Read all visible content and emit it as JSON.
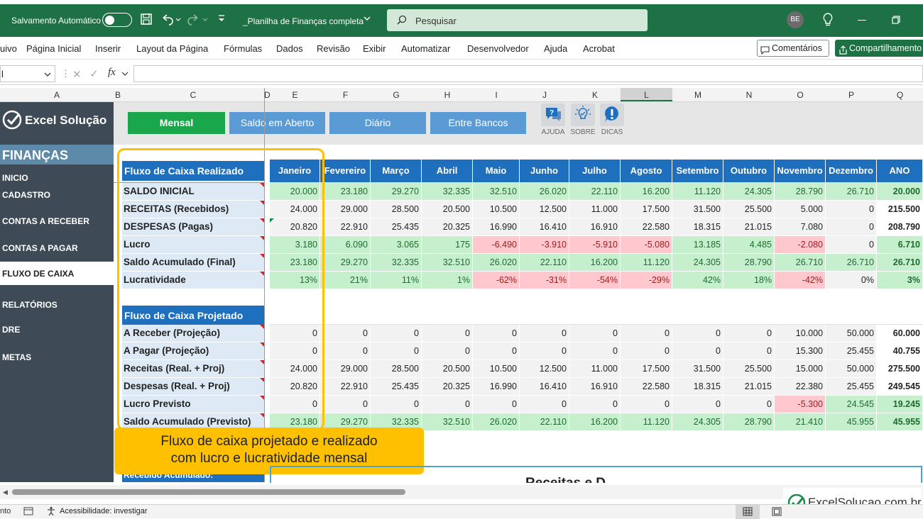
{
  "titlebar": {
    "autosave_label": "Salvamento Automático",
    "file_name": "_Planilha de Finanças completa",
    "search_placeholder": "Pesquisar",
    "avatar_initials": "BE"
  },
  "menu": [
    "uivo",
    "Página Inicial",
    "Inserir",
    "Layout da Página",
    "Fórmulas",
    "Dados",
    "Revisão",
    "Exibir",
    "Automatizar",
    "Desenvolvedor",
    "Ajuda",
    "Acrobat"
  ],
  "comments_label": "Comentários",
  "share_label": "Compartilhamento",
  "formula_bar": {
    "name_box": "l",
    "fx": "fx"
  },
  "column_headers": [
    "A",
    "B",
    "C",
    "D",
    "E",
    "F",
    "G",
    "H",
    "I",
    "J",
    "K",
    "L",
    "M",
    "N",
    "O",
    "P",
    "Q"
  ],
  "sidebar": {
    "brand": "Excel Solução",
    "section": "FINANÇAS",
    "items": [
      "INICIO",
      "CADASTRO",
      "CONTAS A RECEBER",
      "CONTAS A PAGAR",
      "FLUXO DE CAIXA",
      "RELATÓRIOS",
      "DRE",
      "METAS"
    ],
    "active": "FLUXO DE CAIXA"
  },
  "view_buttons": [
    "Mensal",
    "Saldo em Aberto",
    "Diário",
    "Entre Bancos"
  ],
  "icon_buttons": [
    "AJUDA",
    "SOBRE",
    "DICAS"
  ],
  "months": [
    "Janeiro",
    "Fevereiro",
    "Março",
    "Abril",
    "Maio",
    "Junho",
    "Julho",
    "Agosto",
    "Setembro",
    "Outubro",
    "Novembro",
    "Dezembro",
    "ANO"
  ],
  "realizado": {
    "title": "Fluxo de Caixa Realizado",
    "rows": [
      {
        "label": "SALDO INICIAL",
        "values": [
          "20.000",
          "23.180",
          "29.270",
          "32.335",
          "32.510",
          "26.020",
          "22.110",
          "16.200",
          "11.120",
          "24.305",
          "28.790",
          "26.710",
          "20.000"
        ]
      },
      {
        "label": "RECEITAS (Recebidos)",
        "values": [
          "24.000",
          "29.000",
          "28.500",
          "20.500",
          "10.500",
          "12.500",
          "11.000",
          "17.500",
          "31.500",
          "25.500",
          "5.000",
          "0",
          "215.500"
        ]
      },
      {
        "label": "DESPESAS (Pagas)",
        "values": [
          "20.820",
          "22.910",
          "25.435",
          "20.325",
          "16.990",
          "16.410",
          "16.910",
          "22.580",
          "18.315",
          "21.015",
          "7.080",
          "0",
          "208.790"
        ]
      },
      {
        "label": "Lucro",
        "values": [
          "3.180",
          "6.090",
          "3.065",
          "175",
          "-6.490",
          "-3.910",
          "-5.910",
          "-5.080",
          "13.185",
          "4.485",
          "-2.080",
          "0",
          "6.710"
        ]
      },
      {
        "label": "Saldo Acumulado (Final)",
        "values": [
          "23.180",
          "29.270",
          "32.335",
          "32.510",
          "26.020",
          "22.110",
          "16.200",
          "11.120",
          "24.305",
          "28.790",
          "26.710",
          "26.710",
          "26.710"
        ]
      },
      {
        "label": "Lucratividade",
        "values": [
          "13%",
          "21%",
          "11%",
          "1%",
          "-62%",
          "-31%",
          "-54%",
          "-29%",
          "42%",
          "18%",
          "-42%",
          "0%",
          "3%"
        ]
      }
    ]
  },
  "projetado": {
    "title": "Fluxo de Caixa Projetado",
    "rows": [
      {
        "label": "A Receber (Projeção)",
        "values": [
          "0",
          "0",
          "0",
          "0",
          "0",
          "0",
          "0",
          "0",
          "0",
          "0",
          "10.000",
          "50.000",
          "60.000"
        ]
      },
      {
        "label": "A Pagar (Projeção)",
        "values": [
          "0",
          "0",
          "0",
          "0",
          "0",
          "0",
          "0",
          "0",
          "0",
          "0",
          "15.300",
          "25.455",
          "40.755"
        ]
      },
      {
        "label": "Receitas (Real. + Proj)",
        "values": [
          "24.000",
          "29.000",
          "28.500",
          "20.500",
          "10.500",
          "12.500",
          "11.000",
          "17.500",
          "31.500",
          "25.500",
          "15.000",
          "50.000",
          "275.500"
        ]
      },
      {
        "label": "Despesas (Real. + Proj)",
        "values": [
          "20.820",
          "22.910",
          "25.435",
          "20.325",
          "16.990",
          "16.410",
          "16.910",
          "22.580",
          "18.315",
          "21.015",
          "22.380",
          "25.455",
          "249.545"
        ]
      },
      {
        "label": "Lucro Previsto",
        "values": [
          "0",
          "0",
          "0",
          "0",
          "0",
          "0",
          "0",
          "0",
          "0",
          "0",
          "-5.300",
          "24.545",
          "19.245"
        ]
      },
      {
        "label": "Saldo Acumulado (Previsto)",
        "values": [
          "23.180",
          "29.270",
          "32.335",
          "32.510",
          "26.020",
          "22.110",
          "16.200",
          "11.120",
          "24.305",
          "28.790",
          "21.410",
          "45.955",
          "45.955"
        ]
      }
    ]
  },
  "partial_label": "Recebido Acumulado:",
  "partial_chart_title": "Receitas e D",
  "callout_line1": "Fluxo de caixa projetado e realizado",
  "callout_line2": "com lucro e lucratividade mensal",
  "status": {
    "left": "nto",
    "accessibility": "Acessibilidade: investigar"
  },
  "watermark": "ExcelSolucao.com.br",
  "colors": {
    "excel_green": "#1e7145",
    "blue_header": "#1f6fbf",
    "green_button": "#1aa64b",
    "light_blue_button": "#5b9bd5",
    "sidebar": "#3e4a55"
  }
}
